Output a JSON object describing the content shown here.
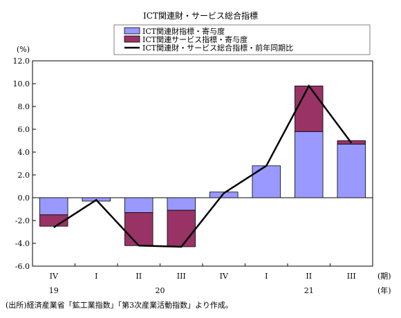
{
  "chart_data": {
    "type": "bar",
    "title": "ICT関連財・サービス総合指標",
    "ylabel": "(%)",
    "ylim": [
      -6.0,
      12.0
    ],
    "yticks": [
      "12.0",
      "10.0",
      "8.0",
      "6.0",
      "4.0",
      "2.0",
      "0.0",
      "-2.0",
      "-4.0",
      "-6.0"
    ],
    "yticks_values": [
      12,
      10,
      8,
      6,
      4,
      2,
      0,
      -2,
      -4,
      -6
    ],
    "categories": [
      "IV",
      "I",
      "II",
      "III",
      "IV",
      "I",
      "II",
      "III"
    ],
    "years": [
      {
        "label": "19",
        "at": 0
      },
      {
        "label": "20",
        "at": 2.5
      },
      {
        "label": "21",
        "at": 6
      }
    ],
    "period_unit": "(期)",
    "year_unit": "(年)",
    "series": [
      {
        "name": "ICT関連財指標・寄与度",
        "kind": "bar",
        "color": "#9999ff",
        "values": [
          -1.5,
          -0.3,
          -1.3,
          -1.1,
          0.5,
          2.8,
          5.8,
          4.7
        ]
      },
      {
        "name": "ICT関連サービス指標・寄与度",
        "kind": "bar",
        "color": "#993366",
        "values": [
          -1.0,
          0.0,
          -2.9,
          -3.2,
          0.0,
          0.0,
          4.0,
          0.3
        ]
      },
      {
        "name": "ICT関連財・サービス総合指標・前年同期比",
        "kind": "line",
        "color": "#000000",
        "values": [
          -2.6,
          -0.2,
          -4.2,
          -4.3,
          0.4,
          2.8,
          9.8,
          4.8
        ]
      }
    ],
    "legend_position": "top",
    "grid": false
  },
  "source_note": "(出所)経済産業省「鉱工業指数」「第3次産業活動指数」より作成。"
}
